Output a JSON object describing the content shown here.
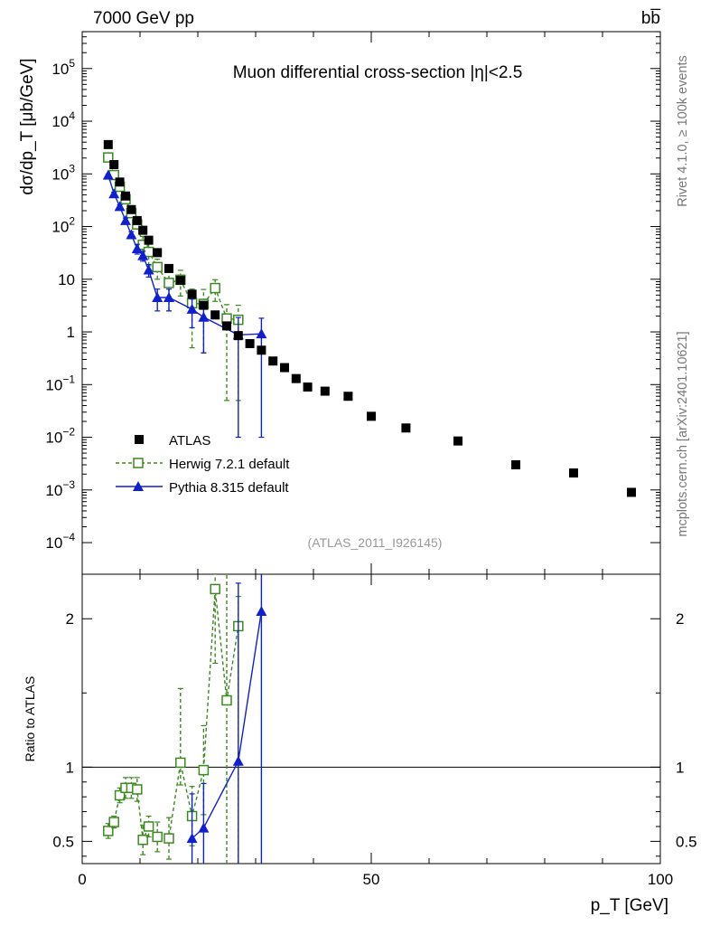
{
  "header": {
    "left_title": "7000 GeV pp",
    "right_title": "bb̅"
  },
  "right_labels": {
    "version": "Rivet 4.1.0, ≥ 100k events",
    "source": "mcplots.cern.ch [arXiv:2401.10621]"
  },
  "colors": {
    "atlas": "#000000",
    "herwig": "#3a8a1e",
    "pythia": "#1020d0"
  },
  "chart_data": [
    {
      "type": "scatter",
      "title": "Muon differential cross-section |η|<2.5",
      "ylabel": "dσ/dp_T [μb/GeV]",
      "xlabel": "p_T [GeV]",
      "analysis": "(ATLAS_2011_I926145)",
      "xlim": [
        0,
        100
      ],
      "ylim_log10": [
        -4.6,
        5.7
      ],
      "ytick_labels": [
        "10^5",
        "10^4",
        "10^3",
        "10^2",
        "10",
        "1",
        "10^-1",
        "10^-2",
        "10^-3",
        "10^-4"
      ],
      "legend": {
        "position": "bottom-left",
        "entries": [
          "ATLAS",
          "Herwig 7.2.1 default",
          "Pythia 8.315 default"
        ]
      },
      "series": [
        {
          "name": "ATLAS",
          "x": [
            4.5,
            5.5,
            6.5,
            7.5,
            8.5,
            9.5,
            10.5,
            11.5,
            13,
            15,
            17,
            19,
            21,
            23,
            25,
            27,
            29,
            31,
            33,
            35,
            37,
            39,
            42,
            46,
            50,
            56,
            65,
            75,
            85,
            95
          ],
          "y": [
            3600,
            1500,
            700,
            380,
            210,
            130,
            85,
            55,
            32,
            16,
            9.5,
            5.2,
            3.2,
            2.1,
            1.3,
            0.85,
            0.6,
            0.45,
            0.28,
            0.21,
            0.13,
            0.09,
            0.075,
            0.06,
            0.025,
            0.015,
            0.0085,
            0.003,
            0.0021,
            0.0009
          ]
        },
        {
          "name": "Herwig 7.2.1 default",
          "x": [
            4.5,
            5.5,
            6.5,
            7.5,
            8.5,
            9.5,
            10.5,
            11.5,
            13,
            15,
            17,
            19,
            21,
            23,
            25,
            27
          ],
          "y": [
            2050,
            950,
            570,
            330,
            180,
            110,
            45,
            33,
            17,
            8.5,
            9.8,
            3.5,
            3.4,
            6.8,
            1.8,
            1.7
          ],
          "err_low": [
            200,
            80,
            40,
            40,
            30,
            20,
            20,
            15,
            7,
            6,
            5,
            3,
            3,
            3,
            1.75,
            1.65
          ],
          "err_high": [
            200,
            80,
            40,
            40,
            30,
            20,
            20,
            15,
            7,
            6,
            5,
            3,
            3,
            3,
            1.5,
            1.5
          ]
        },
        {
          "name": "Pythia 8.315 default",
          "x": [
            4.5,
            5.5,
            6.5,
            7.5,
            8.5,
            9.5,
            10.5,
            11.5,
            13,
            15,
            19,
            21,
            27,
            31
          ],
          "y": [
            950,
            420,
            240,
            130,
            70,
            38,
            28,
            15,
            4.5,
            4.5,
            2.7,
            1.9,
            0.88,
            0.92
          ],
          "err_low": [
            40,
            30,
            20,
            15,
            10,
            8,
            6,
            4,
            2,
            2,
            1.5,
            1.5,
            0.87,
            0.91
          ],
          "err_high": [
            40,
            30,
            20,
            15,
            10,
            8,
            6,
            4,
            2,
            2,
            1.5,
            1.5,
            1.0,
            0.9
          ]
        }
      ]
    },
    {
      "type": "scatter",
      "title": "",
      "ylabel": "Ratio to ATLAS",
      "xlabel": "p_T [GeV]",
      "xlim": [
        0,
        100
      ],
      "ylim": [
        0.35,
        2.3
      ],
      "xtick_labels": [
        "0",
        "50",
        "100"
      ],
      "ytick_labels": [
        "0.5",
        "1",
        "2"
      ],
      "series": [
        {
          "name": "Herwig 7.2.1 default",
          "x": [
            4.5,
            5.5,
            6.5,
            7.5,
            8.5,
            9.5,
            10.5,
            11.5,
            13,
            15,
            17,
            19,
            21,
            23,
            25,
            27
          ],
          "y": [
            0.57,
            0.63,
            0.81,
            0.86,
            0.86,
            0.85,
            0.51,
            0.6,
            0.53,
            0.52,
            1.03,
            0.67,
            0.98,
            2.2,
            1.45,
            1.95
          ],
          "err_low": [
            0.05,
            0.04,
            0.05,
            0.07,
            0.07,
            0.08,
            0.1,
            0.07,
            0.1,
            0.14,
            0.15,
            0.2,
            0.3,
            0.5,
            1.3,
            1.6
          ],
          "err_high": [
            0.05,
            0.04,
            0.05,
            0.07,
            0.07,
            0.08,
            0.1,
            0.07,
            0.1,
            0.14,
            0.5,
            0.2,
            0.3,
            0.5,
            1.0,
            0.2
          ]
        },
        {
          "name": "Pythia 8.315 default",
          "x": [
            19,
            21,
            27,
            31
          ],
          "y": [
            0.52,
            0.59,
            1.04,
            2.05
          ],
          "err_low": [
            0.3,
            0.3,
            1.0,
            1.8
          ],
          "err_high": [
            0.3,
            0.3,
            1.2,
            0.3
          ]
        }
      ]
    }
  ]
}
